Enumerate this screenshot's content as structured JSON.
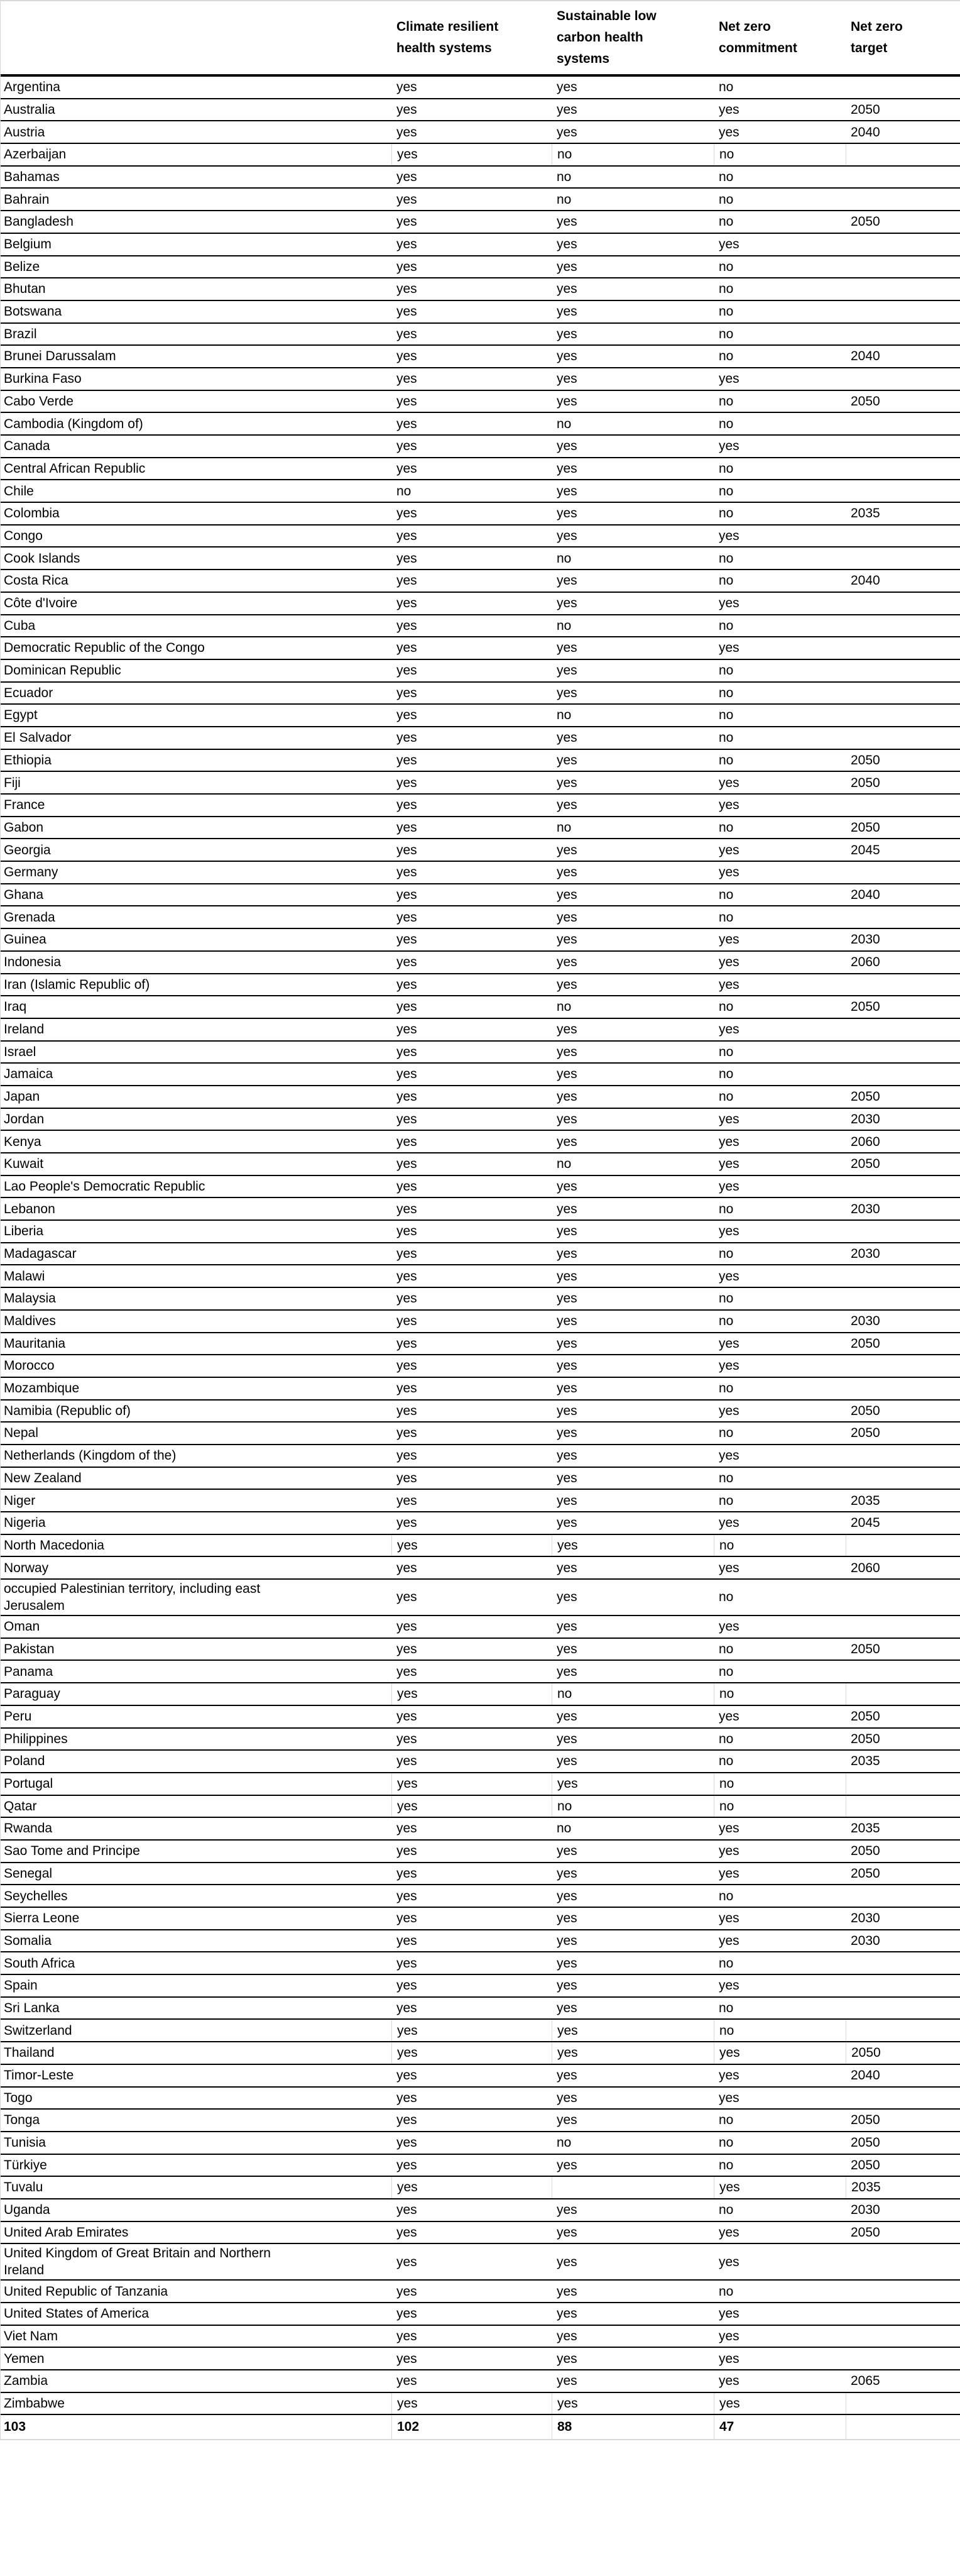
{
  "colors": {
    "background": "#ffffff",
    "text": "#000000",
    "row_line": "#000000",
    "faint_grid_line": "#d9d9d9"
  },
  "table": {
    "columns": [
      "",
      "Climate resilient health systems",
      "Sustainable low carbon health systems",
      "Net zero commitment",
      "Net zero target"
    ],
    "rows": [
      [
        "Argentina",
        "yes",
        "yes",
        "no",
        ""
      ],
      [
        "Australia",
        "yes",
        "yes",
        "yes",
        "2050"
      ],
      [
        "Austria",
        "yes",
        "yes",
        "yes",
        "2040"
      ],
      [
        "Azerbaijan",
        "yes",
        "no",
        "no",
        ""
      ],
      [
        "Bahamas",
        "yes",
        "no",
        "no",
        ""
      ],
      [
        "Bahrain",
        "yes",
        "no",
        "no",
        ""
      ],
      [
        "Bangladesh",
        "yes",
        "yes",
        "no",
        "2050"
      ],
      [
        "Belgium",
        "yes",
        "yes",
        "yes",
        ""
      ],
      [
        "Belize",
        "yes",
        "yes",
        "no",
        ""
      ],
      [
        "Bhutan",
        "yes",
        "yes",
        "no",
        ""
      ],
      [
        "Botswana",
        "yes",
        "yes",
        "no",
        ""
      ],
      [
        "Brazil",
        "yes",
        "yes",
        "no",
        ""
      ],
      [
        "Brunei Darussalam",
        "yes",
        "yes",
        "no",
        "2040"
      ],
      [
        "Burkina Faso",
        "yes",
        "yes",
        "yes",
        ""
      ],
      [
        "Cabo Verde",
        "yes",
        "yes",
        "no",
        "2050"
      ],
      [
        "Cambodia (Kingdom of)",
        "yes",
        "no",
        "no",
        ""
      ],
      [
        "Canada",
        "yes",
        "yes",
        "yes",
        ""
      ],
      [
        "Central African Republic",
        "yes",
        "yes",
        "no",
        ""
      ],
      [
        "Chile",
        "no",
        "yes",
        "no",
        ""
      ],
      [
        "Colombia",
        "yes",
        "yes",
        "no",
        "2035"
      ],
      [
        "Congo",
        "yes",
        "yes",
        "yes",
        ""
      ],
      [
        "Cook Islands",
        "yes",
        "no",
        "no",
        ""
      ],
      [
        "Costa Rica",
        "yes",
        "yes",
        "no",
        "2040"
      ],
      [
        "Côte d'Ivoire",
        "yes",
        "yes",
        "yes",
        ""
      ],
      [
        "Cuba",
        "yes",
        "no",
        "no",
        ""
      ],
      [
        "Democratic Republic of the Congo",
        "yes",
        "yes",
        "yes",
        ""
      ],
      [
        "Dominican Republic",
        "yes",
        "yes",
        "no",
        ""
      ],
      [
        "Ecuador",
        "yes",
        "yes",
        "no",
        ""
      ],
      [
        "Egypt",
        "yes",
        "no",
        "no",
        ""
      ],
      [
        "El Salvador",
        "yes",
        "yes",
        "no",
        ""
      ],
      [
        "Ethiopia",
        "yes",
        "yes",
        "no",
        "2050"
      ],
      [
        "Fiji",
        "yes",
        "yes",
        "yes",
        "2050"
      ],
      [
        "France",
        "yes",
        "yes",
        "yes",
        ""
      ],
      [
        "Gabon",
        "yes",
        "no",
        "no",
        "2050"
      ],
      [
        "Georgia",
        "yes",
        "yes",
        "yes",
        "2045"
      ],
      [
        "Germany",
        "yes",
        "yes",
        "yes",
        ""
      ],
      [
        "Ghana",
        "yes",
        "yes",
        "no",
        "2040"
      ],
      [
        "Grenada",
        "yes",
        "yes",
        "no",
        ""
      ],
      [
        "Guinea",
        "yes",
        "yes",
        "yes",
        "2030"
      ],
      [
        "Indonesia",
        "yes",
        "yes",
        "yes",
        "2060"
      ],
      [
        "Iran (Islamic Republic of)",
        "yes",
        "yes",
        "yes",
        ""
      ],
      [
        "Iraq",
        "yes",
        "no",
        "no",
        "2050"
      ],
      [
        "Ireland",
        "yes",
        "yes",
        "yes",
        ""
      ],
      [
        "Israel",
        "yes",
        "yes",
        "no",
        ""
      ],
      [
        "Jamaica",
        "yes",
        "yes",
        "no",
        ""
      ],
      [
        "Japan",
        "yes",
        "yes",
        "no",
        "2050"
      ],
      [
        "Jordan",
        "yes",
        "yes",
        "yes",
        "2030"
      ],
      [
        "Kenya",
        "yes",
        "yes",
        "yes",
        "2060"
      ],
      [
        "Kuwait",
        "yes",
        "no",
        "yes",
        "2050"
      ],
      [
        "Lao People's Democratic Republic",
        "yes",
        "yes",
        "yes",
        ""
      ],
      [
        "Lebanon",
        "yes",
        "yes",
        "no",
        "2030"
      ],
      [
        "Liberia",
        "yes",
        "yes",
        "yes",
        ""
      ],
      [
        "Madagascar",
        "yes",
        "yes",
        "no",
        "2030"
      ],
      [
        "Malawi",
        "yes",
        "yes",
        "yes",
        ""
      ],
      [
        "Malaysia",
        "yes",
        "yes",
        "no",
        ""
      ],
      [
        "Maldives",
        "yes",
        "yes",
        "no",
        "2030"
      ],
      [
        "Mauritania",
        "yes",
        "yes",
        "yes",
        "2050"
      ],
      [
        "Morocco",
        "yes",
        "yes",
        "yes",
        ""
      ],
      [
        "Mozambique",
        "yes",
        "yes",
        "no",
        ""
      ],
      [
        "Namibia (Republic of)",
        "yes",
        "yes",
        "yes",
        "2050"
      ],
      [
        "Nepal",
        "yes",
        "yes",
        "no",
        "2050"
      ],
      [
        "Netherlands (Kingdom of the)",
        "yes",
        "yes",
        "yes",
        ""
      ],
      [
        "New Zealand",
        "yes",
        "yes",
        "no",
        ""
      ],
      [
        "Niger",
        "yes",
        "yes",
        "no",
        "2035"
      ],
      [
        "Nigeria",
        "yes",
        "yes",
        "yes",
        "2045"
      ],
      [
        "North Macedonia",
        "yes",
        "yes",
        "no",
        ""
      ],
      [
        "Norway",
        "yes",
        "yes",
        "yes",
        "2060"
      ],
      [
        "occupied Palestinian territory, including east Jerusalem",
        "yes",
        "yes",
        "no",
        ""
      ],
      [
        "Oman",
        "yes",
        "yes",
        "yes",
        ""
      ],
      [
        "Pakistan",
        "yes",
        "yes",
        "no",
        "2050"
      ],
      [
        "Panama",
        "yes",
        "yes",
        "no",
        ""
      ],
      [
        "Paraguay",
        "yes",
        "no",
        "no",
        ""
      ],
      [
        "Peru",
        "yes",
        "yes",
        "yes",
        "2050"
      ],
      [
        "Philippines",
        "yes",
        "yes",
        "no",
        "2050"
      ],
      [
        "Poland",
        "yes",
        "yes",
        "no",
        "2035"
      ],
      [
        "Portugal",
        "yes",
        "yes",
        "no",
        ""
      ],
      [
        "Qatar",
        "yes",
        "no",
        "no",
        ""
      ],
      [
        "Rwanda",
        "yes",
        "no",
        "yes",
        "2035"
      ],
      [
        "Sao Tome and Principe",
        "yes",
        "yes",
        "yes",
        "2050"
      ],
      [
        "Senegal",
        "yes",
        "yes",
        "yes",
        "2050"
      ],
      [
        "Seychelles",
        "yes",
        "yes",
        "no",
        ""
      ],
      [
        "Sierra Leone",
        "yes",
        "yes",
        "yes",
        "2030"
      ],
      [
        "Somalia",
        "yes",
        "yes",
        "yes",
        "2030"
      ],
      [
        "South Africa",
        "yes",
        "yes",
        "no",
        ""
      ],
      [
        "Spain",
        "yes",
        "yes",
        "yes",
        ""
      ],
      [
        "Sri Lanka",
        "yes",
        "yes",
        "no",
        ""
      ],
      [
        "Switzerland",
        "yes",
        "yes",
        "no",
        ""
      ],
      [
        "Thailand",
        "yes",
        "yes",
        "yes",
        "2050"
      ],
      [
        "Timor-Leste",
        "yes",
        "yes",
        "yes",
        "2040"
      ],
      [
        "Togo",
        "yes",
        "yes",
        "yes",
        ""
      ],
      [
        "Tonga",
        "yes",
        "yes",
        "no",
        "2050"
      ],
      [
        "Tunisia",
        "yes",
        "no",
        "no",
        "2050"
      ],
      [
        "Türkiye",
        "yes",
        "yes",
        "no",
        "2050"
      ],
      [
        "Tuvalu",
        "yes",
        "",
        "yes",
        "2035"
      ],
      [
        "Uganda",
        "yes",
        "yes",
        "no",
        "2030"
      ],
      [
        "United Arab Emirates",
        "yes",
        "yes",
        "yes",
        "2050"
      ],
      [
        "United Kingdom of Great Britain and Northern Ireland",
        "yes",
        "yes",
        "yes",
        ""
      ],
      [
        "United Republic of Tanzania",
        "yes",
        "yes",
        "no",
        ""
      ],
      [
        "United States of America",
        "yes",
        "yes",
        "yes",
        ""
      ],
      [
        "Viet Nam",
        "yes",
        "yes",
        "yes",
        ""
      ],
      [
        "Yemen",
        "yes",
        "yes",
        "yes",
        ""
      ],
      [
        "Zambia",
        "yes",
        "yes",
        "yes",
        "2065"
      ],
      [
        "Zimbabwe",
        "yes",
        "yes",
        "yes",
        ""
      ]
    ],
    "totals": [
      "103",
      "102",
      "88",
      "47",
      ""
    ],
    "tall_rows": [
      "occupied Palestinian territory, including east Jerusalem",
      "United Kingdom of Great Britain and Northern Ireland"
    ],
    "grid_rows": [
      "Azerbaijan",
      "North Macedonia",
      "Paraguay",
      "Portugal",
      "Qatar",
      "Switzerland",
      "Thailand",
      "Tuvalu",
      "Zimbabwe"
    ]
  }
}
